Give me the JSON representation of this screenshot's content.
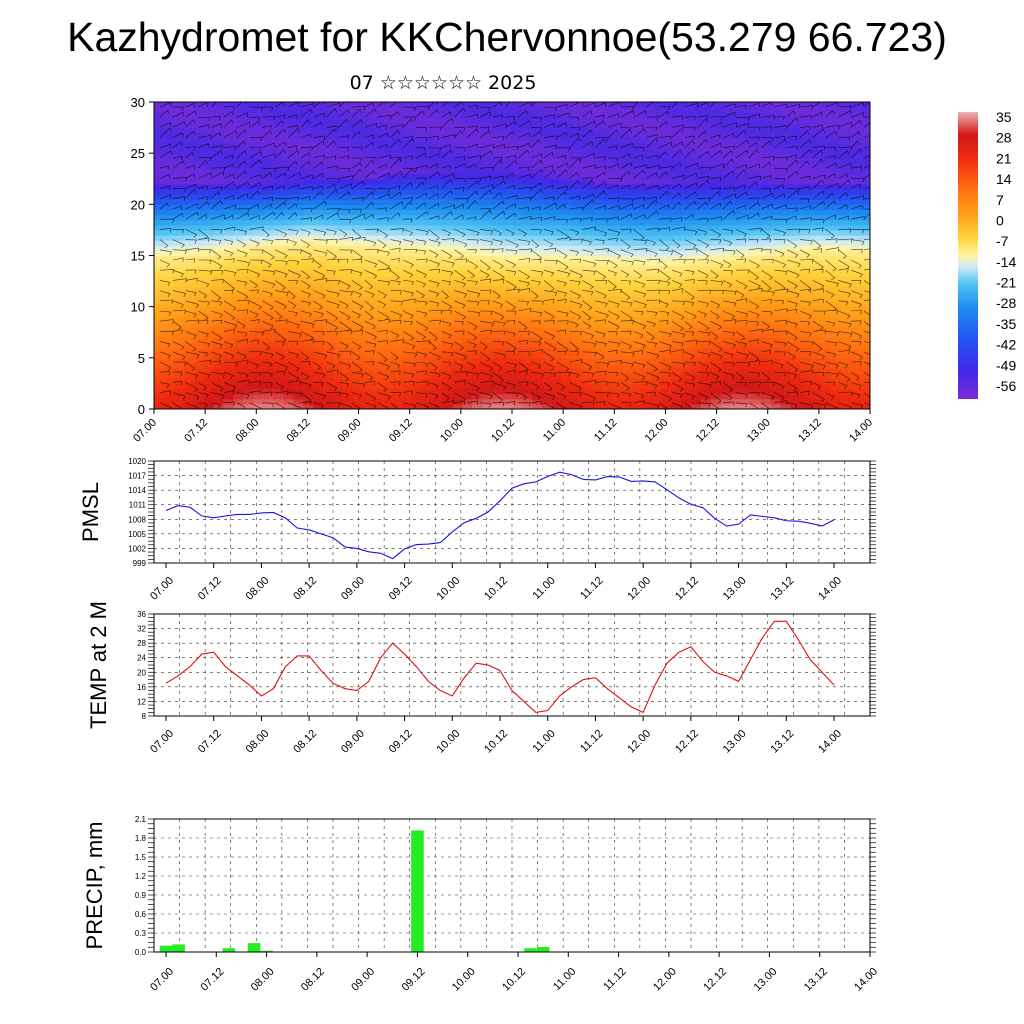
{
  "title": "Kazhydromet for KKChervonnoe(53.279 66.723)",
  "subtitle": "07 ☆☆☆☆☆☆ 2025",
  "colors": {
    "pmsl_line": "#1515d8",
    "temp_line": "#e01010",
    "precip_bar": "#22ee22",
    "wind_barbs": "#000000"
  },
  "time_ticks": [
    "07.00",
    "07.12",
    "08.00",
    "08.12",
    "09.00",
    "09.12",
    "10.00",
    "10.12",
    "11.00",
    "11.12",
    "12.00",
    "12.12",
    "13.00",
    "13.12",
    "14.00"
  ],
  "chart_data": [
    {
      "type": "heatmap",
      "title": "",
      "description_note": "",
      "ylim": [
        0,
        30
      ],
      "y_ticks": [
        "0",
        "5",
        "10",
        "15",
        "20",
        "25",
        "30"
      ],
      "x_ticks": [
        "07.00",
        "07.12",
        "08.00",
        "08.12",
        "09.00",
        "09.12",
        "10.00",
        "10.12",
        "11.00",
        "11.12",
        "12.00",
        "12.12",
        "13.00",
        "13.12",
        "14.00"
      ],
      "colorbar_labels": [
        "35",
        "28",
        "21",
        "14",
        "7",
        "0",
        "-7",
        "-14",
        "-21",
        "-28",
        "-35",
        "-42",
        "-49",
        "-56"
      ],
      "colorbar_range": [
        -60,
        38
      ],
      "zero_isoline_height": [
        14.8,
        15.2,
        15.8,
        16.2,
        15.8,
        15.5,
        15.2,
        14.5,
        14.5,
        14.2,
        14.0,
        14.5,
        15.0,
        15.5,
        15.3
      ],
      "tropopause_height": [
        22,
        22,
        22,
        22.5,
        22.5,
        23,
        23,
        23,
        22.5,
        22,
        22,
        22,
        22,
        22,
        22
      ],
      "overlay": "wind barbs"
    },
    {
      "type": "line",
      "ylabel": "PMSL",
      "ylim": [
        999,
        1020
      ],
      "y_ticks": [
        "999",
        "1002",
        "1005",
        "1008",
        "1011",
        "1014",
        "1017",
        "1020"
      ],
      "x_ticks": [
        "07.00",
        "07.12",
        "08.00",
        "08.12",
        "09.00",
        "09.12",
        "10.00",
        "10.12",
        "11.00",
        "11.12",
        "12.00",
        "12.12",
        "13.00",
        "13.12",
        "14.00"
      ],
      "series": [
        {
          "values": [
            1009.8,
            1010.8,
            1010.5,
            1008.7,
            1008.3,
            1008.7,
            1009.0,
            1009.0,
            1009.3,
            1009.4,
            1008.3,
            1006.2,
            1005.8,
            1005.0,
            1004.2,
            1002.3,
            1002.0,
            1001.3,
            1001.0,
            999.9,
            1001.9,
            1002.8,
            1002.9,
            1003.2,
            1005.4,
            1007.3,
            1008.2,
            1009.5,
            1011.8,
            1014.4,
            1015.3,
            1015.7,
            1016.8,
            1017.7,
            1017.2,
            1016.2,
            1016.1,
            1016.8,
            1016.7,
            1015.8,
            1015.9,
            1015.7,
            1014.1,
            1012.4,
            1011.1,
            1010.4,
            1008.2,
            1006.6,
            1007.0,
            1008.9,
            1008.6,
            1008.3,
            1007.7,
            1007.6,
            1007.2,
            1006.6,
            1007.9
          ]
        }
      ]
    },
    {
      "type": "line",
      "ylabel": "TEMP at 2 M",
      "ylim": [
        8,
        36
      ],
      "y_ticks": [
        "8",
        "12",
        "16",
        "20",
        "24",
        "28",
        "32",
        "36"
      ],
      "x_ticks": [
        "07.00",
        "07.12",
        "08.00",
        "08.12",
        "09.00",
        "09.12",
        "10.00",
        "10.12",
        "11.00",
        "11.12",
        "12.00",
        "12.12",
        "13.00",
        "13.12",
        "14.00"
      ],
      "series": [
        {
          "values": [
            17,
            19,
            21.5,
            25,
            25.5,
            21.5,
            19,
            16.5,
            13.5,
            15.5,
            21.5,
            24.5,
            24.5,
            20.5,
            17,
            15.5,
            15,
            17.5,
            24,
            28,
            25,
            21.5,
            17.5,
            15,
            13.5,
            18.5,
            22.5,
            22,
            20.5,
            15,
            12,
            9,
            9.5,
            13.5,
            16,
            18,
            18.5,
            15.5,
            13,
            10.5,
            9,
            16.5,
            22.5,
            25.5,
            27,
            23,
            20,
            19,
            17.5,
            23.5,
            29.5,
            34,
            34,
            29,
            23.5,
            20,
            16.5
          ]
        }
      ]
    },
    {
      "type": "bar",
      "ylabel": "PRECIP, mm",
      "ylim": [
        0,
        2.1
      ],
      "y_ticks": [
        "0.0",
        "0.3",
        "0.6",
        "0.9",
        "1.2",
        "1.5",
        "1.8",
        "2.1"
      ],
      "x_ticks": [
        "07.00",
        "07.12",
        "08.00",
        "08.12",
        "09.00",
        "09.12",
        "10.00",
        "10.12",
        "11.00",
        "11.12",
        "12.00",
        "12.12",
        "13.00",
        "13.12",
        "14.00"
      ],
      "values": [
        0.1,
        0.12,
        0,
        0,
        0,
        0.06,
        0,
        0.14,
        0.02,
        0,
        0,
        0,
        0,
        0,
        0,
        0,
        0,
        0,
        0,
        0,
        1.92,
        0,
        0,
        0,
        0,
        0,
        0,
        0,
        0,
        0.06,
        0.08,
        0,
        0,
        0,
        0,
        0,
        0,
        0,
        0,
        0,
        0,
        0,
        0,
        0,
        0,
        0,
        0,
        0,
        0,
        0,
        0,
        0,
        0,
        0,
        0,
        0,
        0
      ]
    }
  ]
}
